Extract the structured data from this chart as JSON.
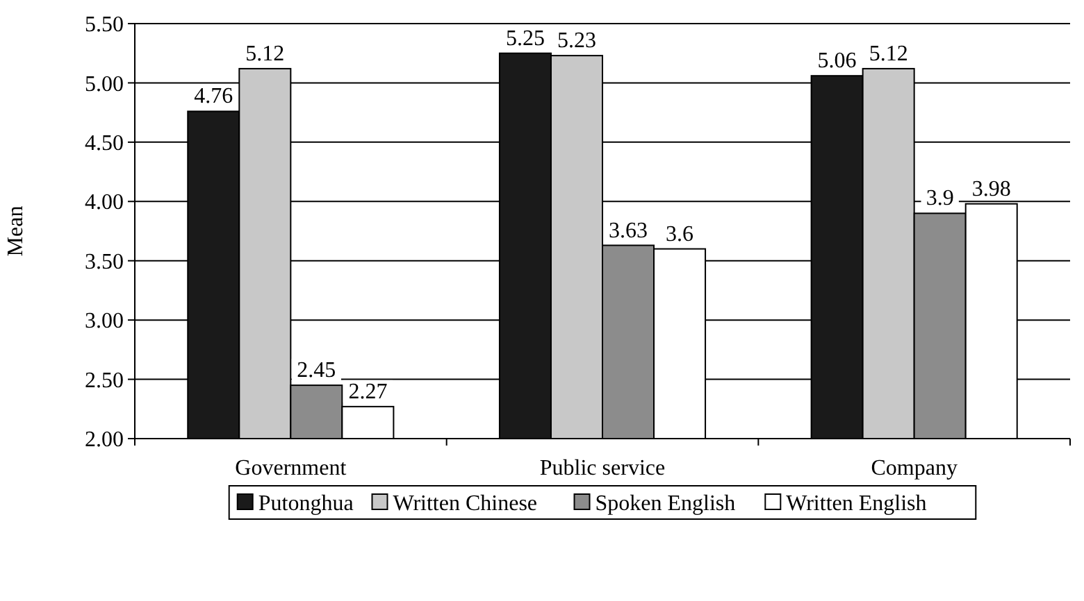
{
  "chart_data": {
    "type": "bar",
    "ylabel": "Mean",
    "categories": [
      "Government",
      "Public service",
      "Company"
    ],
    "series": [
      {
        "name": "Putonghua",
        "color": "#1a1a1a",
        "values": [
          4.76,
          5.25,
          5.06
        ]
      },
      {
        "name": "Written Chinese",
        "color": "#c8c8c8",
        "values": [
          5.12,
          5.23,
          5.12
        ]
      },
      {
        "name": "Spoken English",
        "color": "#8c8c8c",
        "values": [
          2.45,
          3.63,
          3.9
        ]
      },
      {
        "name": "Written English",
        "color": "#ffffff",
        "values": [
          2.27,
          3.6,
          3.98
        ]
      }
    ],
    "ylim": [
      2,
      5.5
    ],
    "yticks": [
      {
        "value": 2,
        "label": "2.00"
      },
      {
        "value": 2.5,
        "label": "2.50"
      },
      {
        "value": 3,
        "label": "3.00"
      },
      {
        "value": 3.5,
        "label": "3.50"
      },
      {
        "value": 4,
        "label": "4.00"
      },
      {
        "value": 4.5,
        "label": "4.50"
      },
      {
        "value": 5,
        "label": "5.00"
      },
      {
        "value": 5.5,
        "label": "5.50"
      }
    ],
    "grid": "y",
    "data_labels": true,
    "legend": "bottom"
  }
}
